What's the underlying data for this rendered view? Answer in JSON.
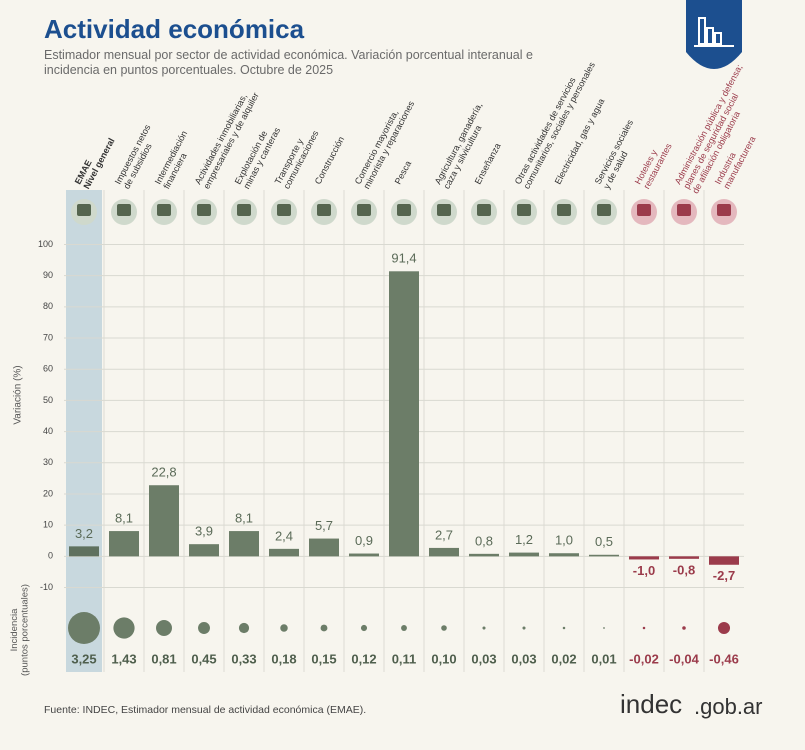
{
  "chart_data": {
    "type": "bar",
    "title": "Actividad económica",
    "subtitle": "Estimador mensual por sector de actividad económica. Variación porcentual interanual e incidencia en puntos porcentuales. Octubre de 2025",
    "y_label": "Variación (%)",
    "categories": [
      "EMAE\nNivel general",
      "Impuestos netos\nde subsidios",
      "Intermediación\nfinanciera",
      "Actividades inmobiliarias,\nempresariales y de alquiler",
      "Explotación de\nminas y canteras",
      "Transporte y\ncomunicaciones",
      "Construcción",
      "Comercio mayorista,\nminorista y reparaciones",
      "Pesca",
      "Agricultura, ganadería,\ncaza y silvicultura",
      "Enseñanza",
      "Otras actividades de servicios\ncomunitarios, sociales y personales",
      "Electricidad, gas y agua",
      "Servicios sociales\ny de salud",
      "Hoteles y\nrestaurantes",
      "Administración pública y defensa;\nplanes de seguridad social\nde afiliación obligatoria",
      "Industria\nmanufacturera"
    ],
    "values": [
      3.2,
      8.1,
      22.8,
      3.9,
      8.1,
      2.4,
      5.7,
      0.9,
      91.4,
      2.7,
      0.8,
      1.2,
      1.0,
      0.5,
      -1.0,
      -0.8,
      -2.7
    ],
    "value_labels": [
      "3,2",
      "8,1",
      "22,8",
      "3,9",
      "8,1",
      "2,4",
      "5,7",
      "0,9",
      "91,4",
      "2,7",
      "0,8",
      "1,2",
      "1,0",
      "0,5",
      "-1,0",
      "-0,8",
      "-2,7"
    ],
    "color": "#6c7d68",
    "negative_color": "#9b3b4b",
    "ylim": [
      -14,
      104
    ],
    "yticks": [
      -10,
      0,
      10,
      20,
      30,
      40,
      50,
      60,
      70,
      80,
      90,
      100
    ],
    "grid": true,
    "incidence": {
      "label": "Incidencia\n(puntos porcentuales)",
      "values": [
        3.25,
        1.43,
        0.81,
        0.45,
        0.33,
        0.18,
        0.15,
        0.12,
        0.11,
        0.1,
        0.03,
        0.03,
        0.02,
        0.01,
        -0.02,
        -0.04,
        -0.46
      ],
      "value_labels": [
        "3,25",
        "1,43",
        "0,81",
        "0,45",
        "0,33",
        "0,18",
        "0,15",
        "0,12",
        "0,11",
        "0,10",
        "0,03",
        "0,03",
        "0,02",
        "0,01",
        "-0,02",
        "-0,04",
        "-0,46"
      ]
    },
    "source": "Fuente: INDEC, Estimador mensual de actividad económica (EMAE).",
    "brand": {
      "name": "indec",
      "domain": ".gob.ar"
    }
  }
}
